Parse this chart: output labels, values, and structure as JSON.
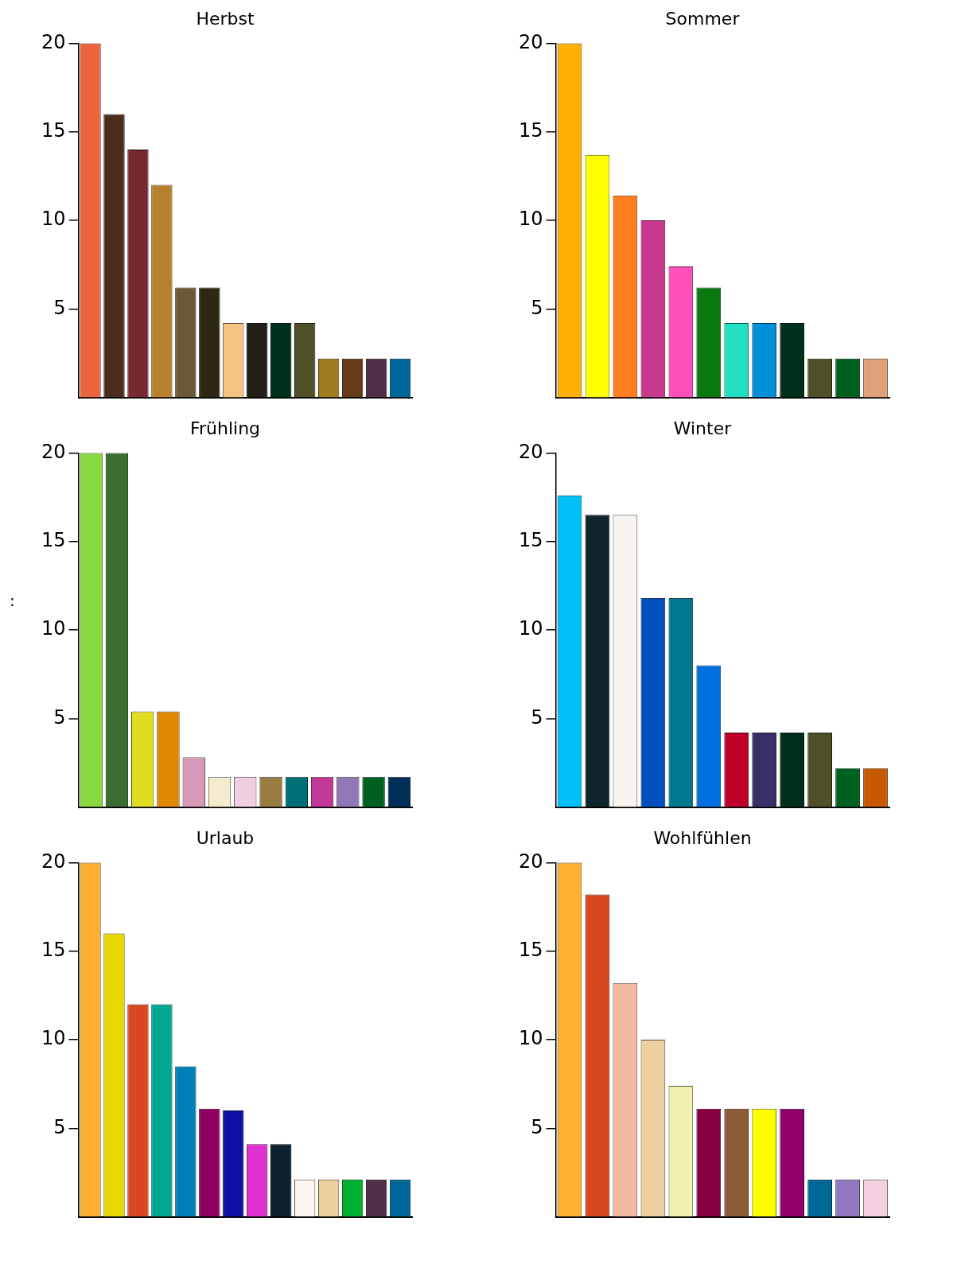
{
  "chart_data": [
    {
      "type": "bar",
      "title": "Herbst",
      "categories": [
        null,
        null,
        null,
        null,
        null,
        null,
        null,
        null,
        null,
        null,
        null,
        null,
        null,
        null
      ],
      "values": [
        20,
        16,
        14,
        12,
        6.2,
        6.2,
        4.2,
        4.2,
        4.2,
        4.2,
        2.2,
        2.2,
        2.2,
        2.2
      ],
      "colors": [
        "#ec643c",
        "#4c2c1c",
        "#782830",
        "#b8802c",
        "#6c5834",
        "#2c2814",
        "#f4c480",
        "#202018",
        "#00301c",
        "#505028",
        "#a07c20",
        "#643c18",
        "#503048",
        "#006898"
      ],
      "ylim": [
        0,
        20
      ],
      "yticks": [
        5,
        10,
        15,
        20
      ],
      "grid": false,
      "legend": false,
      "tick_labels": "y"
    },
    {
      "type": "bar",
      "title": "Sommer",
      "categories": [
        null,
        null,
        null,
        null,
        null,
        null,
        null,
        null,
        null,
        null,
        null,
        null
      ],
      "values": [
        20,
        13.7,
        11.4,
        10,
        7.4,
        6.2,
        4.2,
        4.2,
        4.2,
        2.2,
        2.2,
        2.2
      ],
      "colors": [
        "#ffb000",
        "#ffff00",
        "#ff7f20",
        "#c8388c",
        "#ff4fb8",
        "#0a7a10",
        "#20e0c0",
        "#0090d8",
        "#00301c",
        "#505028",
        "#006020",
        "#e0a078"
      ],
      "ylim": [
        0,
        20
      ],
      "yticks": [
        5,
        10,
        15,
        20
      ],
      "grid": false,
      "legend": false,
      "tick_labels": "y"
    },
    {
      "type": "bar",
      "title": "Frühling",
      "categories": [
        null,
        null,
        null,
        null,
        null,
        null,
        null,
        null,
        null,
        null,
        null,
        null,
        null
      ],
      "values": [
        20,
        20,
        5.4,
        5.4,
        2.8,
        1.7,
        1.7,
        1.7,
        1.7,
        1.7,
        1.7,
        1.7,
        1.7
      ],
      "colors": [
        "#88d840",
        "#3a6e30",
        "#e0dc20",
        "#e08800",
        "#d898b8",
        "#f4eccc",
        "#f0d0e0",
        "#987c40",
        "#007078",
        "#c03898",
        "#9078b8",
        "#006020",
        "#003058"
      ],
      "ylim": [
        0,
        20
      ],
      "yticks": [
        5,
        10,
        15,
        20
      ],
      "grid": false,
      "legend": false,
      "tick_labels": "y",
      "annotations": [
        ":"
      ]
    },
    {
      "type": "bar",
      "title": "Winter",
      "categories": [
        null,
        null,
        null,
        null,
        null,
        null,
        null,
        null,
        null,
        null,
        null,
        null
      ],
      "values": [
        17.6,
        16.5,
        16.5,
        11.8,
        11.8,
        8,
        4.2,
        4.2,
        4.2,
        4.2,
        2.2,
        2.2
      ],
      "colors": [
        "#00c0f8",
        "#10242c",
        "#f8f4f0",
        "#0050c0",
        "#007890",
        "#0070e0",
        "#c00028",
        "#383068",
        "#00301c",
        "#505028",
        "#006020",
        "#c85800"
      ],
      "ylim": [
        0,
        20
      ],
      "yticks": [
        5,
        10,
        15,
        20
      ],
      "grid": false,
      "legend": false,
      "tick_labels": "y"
    },
    {
      "type": "bar",
      "title": "Urlaub",
      "categories": [
        null,
        null,
        null,
        null,
        null,
        null,
        null,
        null,
        null,
        null,
        null,
        null,
        null,
        null
      ],
      "values": [
        20,
        16,
        12,
        12,
        8.5,
        6.1,
        6,
        4.1,
        4.1,
        2.1,
        2.1,
        2.1,
        2.1,
        2.1
      ],
      "colors": [
        "#ffb030",
        "#e8d800",
        "#d84820",
        "#00a890",
        "#0080b8",
        "#900060",
        "#1010a8",
        "#e030d0",
        "#0c2030",
        "#fcf4f0",
        "#ecd0a0",
        "#00b030",
        "#503048",
        "#006898"
      ],
      "ylim": [
        0,
        20
      ],
      "yticks": [
        5,
        10,
        15,
        20
      ],
      "grid": false,
      "legend": false,
      "tick_labels": "y"
    },
    {
      "type": "bar",
      "title": "Wohlfühlen",
      "categories": [
        null,
        null,
        null,
        null,
        null,
        null,
        null,
        null,
        null,
        null,
        null,
        null
      ],
      "values": [
        20,
        18.2,
        13.2,
        10,
        7.4,
        6.1,
        6.1,
        6.1,
        6.1,
        2.1,
        2.1,
        2.1
      ],
      "colors": [
        "#ffb030",
        "#d84820",
        "#f4b8a0",
        "#ecd0a0",
        "#f0f0b0",
        "#880040",
        "#8c5c38",
        "#ffff00",
        "#900068",
        "#006898",
        "#9078c0",
        "#f4d0e0"
      ],
      "ylim": [
        0,
        20
      ],
      "yticks": [
        5,
        10,
        15,
        20
      ],
      "grid": false,
      "legend": false,
      "tick_labels": "y"
    }
  ]
}
